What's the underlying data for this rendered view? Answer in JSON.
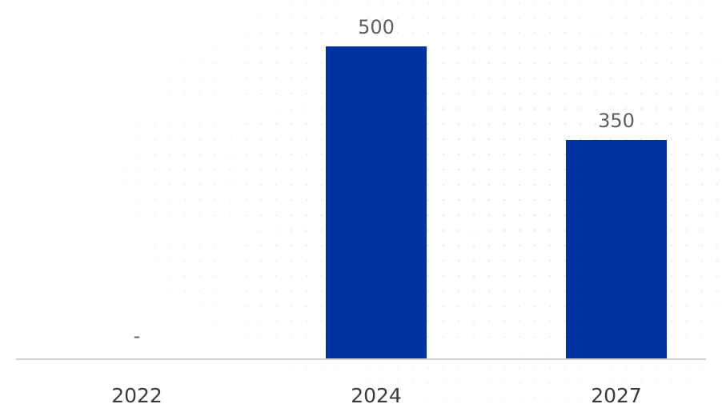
{
  "chart_data": {
    "type": "bar",
    "categories": [
      "2022",
      "2024",
      "2027"
    ],
    "values": [
      null,
      500,
      350
    ],
    "data_labels": [
      "-",
      "500",
      "350"
    ],
    "title": "",
    "xlabel": "",
    "ylabel": "",
    "ylim": [
      0,
      500
    ],
    "grid": false,
    "legend": "none",
    "colors": {
      "bar": "#0033a0",
      "axis": "#cfcfcf",
      "data_label": "#5e5e5e",
      "tick_label": "#3a3a3a",
      "dot_pattern": "#e6e8ee"
    }
  }
}
